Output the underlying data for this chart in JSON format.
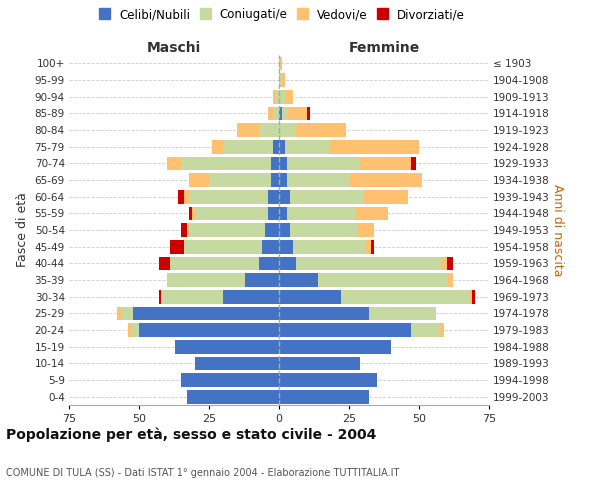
{
  "age_groups": [
    "0-4",
    "5-9",
    "10-14",
    "15-19",
    "20-24",
    "25-29",
    "30-34",
    "35-39",
    "40-44",
    "45-49",
    "50-54",
    "55-59",
    "60-64",
    "65-69",
    "70-74",
    "75-79",
    "80-84",
    "85-89",
    "90-94",
    "95-99",
    "100+"
  ],
  "birth_years": [
    "1999-2003",
    "1994-1998",
    "1989-1993",
    "1984-1988",
    "1979-1983",
    "1974-1978",
    "1969-1973",
    "1964-1968",
    "1959-1963",
    "1954-1958",
    "1949-1953",
    "1944-1948",
    "1939-1943",
    "1934-1938",
    "1929-1933",
    "1924-1928",
    "1919-1923",
    "1914-1918",
    "1909-1913",
    "1904-1908",
    "≤ 1903"
  ],
  "males": {
    "celibi": [
      33,
      35,
      30,
      37,
      50,
      52,
      20,
      12,
      7,
      6,
      5,
      4,
      4,
      3,
      3,
      2,
      0,
      0,
      0,
      0,
      0
    ],
    "coniugati": [
      0,
      0,
      0,
      0,
      3,
      4,
      22,
      28,
      32,
      28,
      27,
      26,
      28,
      22,
      32,
      18,
      7,
      2,
      1,
      0,
      0
    ],
    "vedovi": [
      0,
      0,
      0,
      0,
      1,
      2,
      0,
      0,
      0,
      0,
      1,
      1,
      2,
      7,
      5,
      4,
      8,
      2,
      1,
      0,
      0
    ],
    "divorziati": [
      0,
      0,
      0,
      0,
      0,
      0,
      1,
      0,
      4,
      5,
      2,
      1,
      2,
      0,
      0,
      0,
      0,
      0,
      0,
      0,
      0
    ]
  },
  "females": {
    "nubili": [
      32,
      35,
      29,
      40,
      47,
      32,
      22,
      14,
      6,
      5,
      4,
      3,
      4,
      3,
      3,
      2,
      0,
      1,
      0,
      0,
      0
    ],
    "coniugate": [
      0,
      0,
      0,
      0,
      10,
      24,
      46,
      46,
      52,
      26,
      24,
      24,
      26,
      22,
      26,
      16,
      6,
      2,
      2,
      1,
      0
    ],
    "vedove": [
      0,
      0,
      0,
      0,
      2,
      0,
      1,
      2,
      2,
      2,
      6,
      12,
      16,
      26,
      18,
      32,
      18,
      7,
      3,
      1,
      1
    ],
    "divorziate": [
      0,
      0,
      0,
      0,
      0,
      0,
      1,
      0,
      2,
      1,
      0,
      0,
      0,
      0,
      2,
      0,
      0,
      1,
      0,
      0,
      0
    ]
  },
  "colors": {
    "celibi": "#4472c4",
    "coniugati": "#c5d9a0",
    "vedovi": "#ffc06f",
    "divorziati": "#cc0000"
  },
  "xlim": 75,
  "title": "Popolazione per età, sesso e stato civile - 2004",
  "subtitle": "COMUNE DI TULA (SS) - Dati ISTAT 1° gennaio 2004 - Elaborazione TUTTITALIA.IT",
  "ylabel_left": "Fasce di età",
  "ylabel_right": "Anni di nascita",
  "xlabel_left": "Maschi",
  "xlabel_right": "Femmine"
}
